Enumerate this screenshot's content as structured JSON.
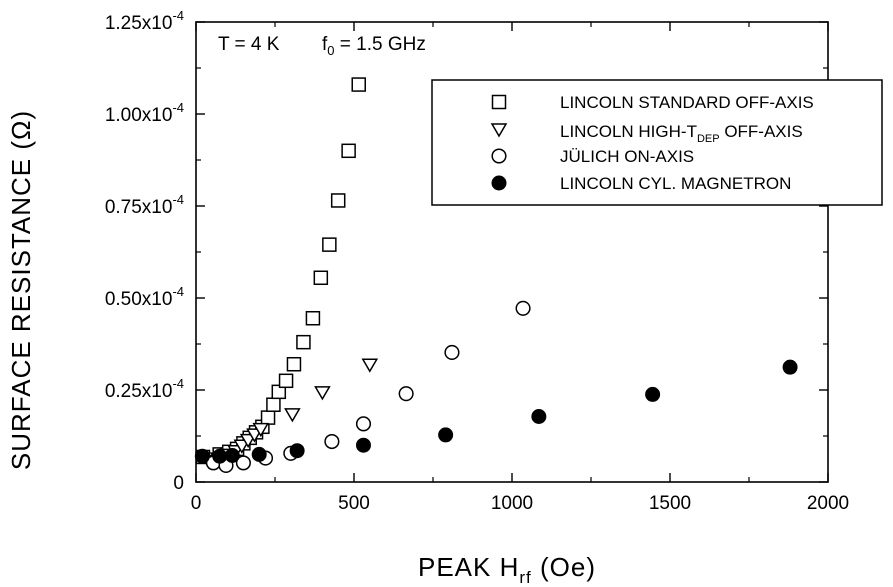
{
  "chart_data": {
    "type": "scatter",
    "annotation": {
      "t_label": "T = 4 K",
      "f_prefix": "f",
      "f_sub": "0",
      "f_suffix": " = 1.5 GHz"
    },
    "xlabel": {
      "prefix": "PEAK H",
      "sub": "rf",
      "suffix": " (Oe)"
    },
    "ylabel": "SURFACE RESISTANCE (Ω)",
    "xlim": [
      0,
      2000
    ],
    "ylim": [
      0,
      0.000125
    ],
    "xticks": [
      {
        "value": 0,
        "label": "0"
      },
      {
        "value": 500,
        "label": "500"
      },
      {
        "value": 1000,
        "label": "1000"
      },
      {
        "value": 1500,
        "label": "1500"
      },
      {
        "value": 2000,
        "label": "2000"
      }
    ],
    "yticks": [
      {
        "value": 0,
        "mant": "0",
        "exp": ""
      },
      {
        "value": 2.5e-05,
        "mant": "0.25x10",
        "exp": "-4"
      },
      {
        "value": 5e-05,
        "mant": "0.50x10",
        "exp": "-4"
      },
      {
        "value": 7.5e-05,
        "mant": "0.75x10",
        "exp": "-4"
      },
      {
        "value": 0.0001,
        "mant": "1.00x10",
        "exp": "-4"
      },
      {
        "value": 0.000125,
        "mant": "1.25x10",
        "exp": "-4"
      }
    ],
    "legend_position": "top-right",
    "series": [
      {
        "name": "LINCOLN STANDARD OFF-AXIS",
        "marker": "square-open",
        "points": [
          [
            22,
            6.8e-06
          ],
          [
            75,
            7.5e-06
          ],
          [
            105,
            8.2e-06
          ],
          [
            130,
            9e-06
          ],
          [
            150,
            1.05e-05
          ],
          [
            170,
            1.2e-05
          ],
          [
            190,
            1.35e-05
          ],
          [
            210,
            1.5e-05
          ],
          [
            228,
            1.75e-05
          ],
          [
            245,
            2.1e-05
          ],
          [
            262,
            2.45e-05
          ],
          [
            285,
            2.75e-05
          ],
          [
            310,
            3.2e-05
          ],
          [
            340,
            3.8e-05
          ],
          [
            370,
            4.45e-05
          ],
          [
            395,
            5.55e-05
          ],
          [
            422,
            6.45e-05
          ],
          [
            450,
            7.65e-05
          ],
          [
            483,
            9e-05
          ],
          [
            515,
            0.000108
          ]
        ]
      },
      {
        "name": "LINCOLN HIGH-T",
        "name_sub": "DEP",
        "name_suffix": " OFF-AXIS",
        "marker": "triangle-down-open",
        "points": [
          [
            40,
            5.8e-06
          ],
          [
            70,
            6.5e-06
          ],
          [
            100,
            7.5e-06
          ],
          [
            125,
            8.5e-06
          ],
          [
            145,
            1e-05
          ],
          [
            165,
            1.15e-05
          ],
          [
            185,
            1.3e-05
          ],
          [
            205,
            1.45e-05
          ],
          [
            305,
            1.85e-05
          ],
          [
            400,
            2.45e-05
          ],
          [
            550,
            3.2e-05
          ]
        ]
      },
      {
        "name": "JÜLICH ON-AXIS",
        "marker": "circle-open",
        "points": [
          [
            55,
            5.2e-06
          ],
          [
            95,
            4.5e-06
          ],
          [
            150,
            5.2e-06
          ],
          [
            220,
            6.5e-06
          ],
          [
            300,
            7.8e-06
          ],
          [
            430,
            1.1e-05
          ],
          [
            530,
            1.58e-05
          ],
          [
            665,
            2.4e-05
          ],
          [
            810,
            3.52e-05
          ],
          [
            1035,
            4.72e-05
          ]
        ]
      },
      {
        "name": "LINCOLN CYL. MAGNETRON",
        "marker": "circle-filled",
        "points": [
          [
            20,
            7e-06
          ],
          [
            75,
            7e-06
          ],
          [
            115,
            7.2e-06
          ],
          [
            200,
            7.5e-06
          ],
          [
            320,
            8.5e-06
          ],
          [
            530,
            1e-05
          ],
          [
            790,
            1.28e-05
          ],
          [
            1085,
            1.78e-05
          ],
          [
            1445,
            2.38e-05
          ],
          [
            1880,
            3.12e-05
          ]
        ]
      }
    ]
  }
}
